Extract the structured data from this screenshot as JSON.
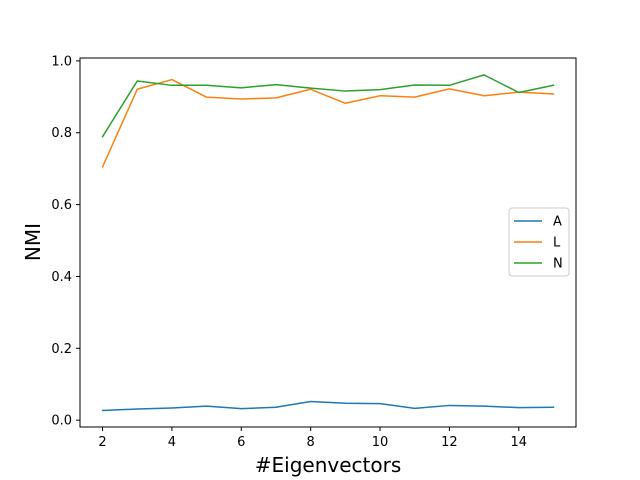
{
  "chart_data": {
    "type": "line",
    "title": "",
    "xlabel": "#Eigenvectors",
    "ylabel": "NMI",
    "x": [
      2,
      3,
      4,
      5,
      6,
      7,
      8,
      9,
      10,
      11,
      12,
      13,
      14,
      15
    ],
    "xlim": [
      1.35,
      15.65
    ],
    "ylim": [
      -0.019,
      1.008
    ],
    "xticks": [
      2,
      4,
      6,
      8,
      10,
      12,
      14
    ],
    "yticks": [
      0.0,
      0.2,
      0.4,
      0.6,
      0.8,
      1.0
    ],
    "xtick_labels": [
      "2",
      "4",
      "6",
      "8",
      "10",
      "12",
      "14"
    ],
    "ytick_labels": [
      "0.0",
      "0.2",
      "0.4",
      "0.6",
      "0.8",
      "1.0"
    ],
    "grid": false,
    "legend_position": "center-right",
    "series": [
      {
        "name": "A",
        "color": "#1f77b4",
        "values": [
          0.027,
          0.031,
          0.034,
          0.039,
          0.032,
          0.036,
          0.052,
          0.047,
          0.046,
          0.033,
          0.041,
          0.039,
          0.035,
          0.036
        ]
      },
      {
        "name": "L",
        "color": "#ff7f0e",
        "values": [
          0.705,
          0.921,
          0.948,
          0.899,
          0.894,
          0.897,
          0.921,
          0.882,
          0.903,
          0.899,
          0.922,
          0.903,
          0.913,
          0.908
        ]
      },
      {
        "name": "N",
        "color": "#2ca02c",
        "values": [
          0.789,
          0.944,
          0.932,
          0.932,
          0.925,
          0.934,
          0.924,
          0.916,
          0.92,
          0.933,
          0.932,
          0.961,
          0.912,
          0.932
        ]
      }
    ]
  }
}
